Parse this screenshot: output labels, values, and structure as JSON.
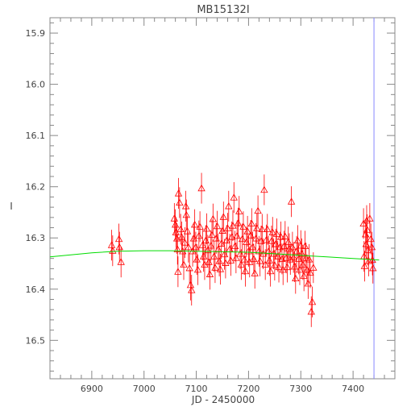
{
  "chart_data": {
    "type": "scatter",
    "title": "MB15132I",
    "xlabel": "JD - 2450000",
    "ylabel": "I",
    "xlim": [
      6820,
      7480
    ],
    "ylim": [
      16.575,
      15.87
    ],
    "y_inverted": true,
    "grid": false,
    "x_ticks": [
      6900,
      7000,
      7100,
      7200,
      7300,
      7400
    ],
    "x_tick_labels": [
      "6900",
      "7000",
      "7100",
      "7200",
      "7300",
      "7400"
    ],
    "y_ticks": [
      15.9,
      16.0,
      16.1,
      16.2,
      16.3,
      16.4,
      16.5
    ],
    "y_tick_labels": [
      "15.9",
      "16.0",
      "16.1",
      "16.2",
      "16.3",
      "16.4",
      "16.5"
    ],
    "series": [
      {
        "style": "triangle-markers-with-errorbars",
        "color": "#ff0000",
        "error_typical": 0.03,
        "points": [
          [
            6938,
            16.314
          ],
          [
            6940,
            16.325
          ],
          [
            6952,
            16.302
          ],
          [
            6953,
            16.318
          ],
          [
            6956,
            16.347
          ],
          [
            7058,
            16.262
          ],
          [
            7060,
            16.274
          ],
          [
            7061,
            16.289
          ],
          [
            7063,
            16.301
          ],
          [
            7064,
            16.322
          ],
          [
            7065,
            16.366
          ],
          [
            7066,
            16.213
          ],
          [
            7068,
            16.231
          ],
          [
            7070,
            16.283
          ],
          [
            7072,
            16.298
          ],
          [
            7074,
            16.326
          ],
          [
            7076,
            16.352
          ],
          [
            7078,
            16.309
          ],
          [
            7080,
            16.238
          ],
          [
            7081,
            16.255
          ],
          [
            7083,
            16.287
          ],
          [
            7085,
            16.318
          ],
          [
            7087,
            16.359
          ],
          [
            7089,
            16.392
          ],
          [
            7091,
            16.402
          ],
          [
            7093,
            16.326
          ],
          [
            7095,
            16.301
          ],
          [
            7097,
            16.274
          ],
          [
            7099,
            16.318
          ],
          [
            7101,
            16.342
          ],
          [
            7103,
            16.362
          ],
          [
            7105,
            16.296
          ],
          [
            7107,
            16.278
          ],
          [
            7110,
            16.203
          ],
          [
            7112,
            16.314
          ],
          [
            7114,
            16.336
          ],
          [
            7116,
            16.352
          ],
          [
            7118,
            16.305
          ],
          [
            7120,
            16.282
          ],
          [
            7122,
            16.324
          ],
          [
            7124,
            16.347
          ],
          [
            7126,
            16.371
          ],
          [
            7128,
            16.315
          ],
          [
            7130,
            16.294
          ],
          [
            7132,
            16.263
          ],
          [
            7134,
            16.336
          ],
          [
            7136,
            16.358
          ],
          [
            7138,
            16.301
          ],
          [
            7140,
            16.277
          ],
          [
            7142,
            16.322
          ],
          [
            7144,
            16.345
          ],
          [
            7146,
            16.361
          ],
          [
            7148,
            16.311
          ],
          [
            7150,
            16.286
          ],
          [
            7152,
            16.259
          ],
          [
            7154,
            16.332
          ],
          [
            7156,
            16.349
          ],
          [
            7158,
            16.305
          ],
          [
            7160,
            16.281
          ],
          [
            7162,
            16.238
          ],
          [
            7164,
            16.322
          ],
          [
            7166,
            16.344
          ],
          [
            7168,
            16.298
          ],
          [
            7170,
            16.276
          ],
          [
            7172,
            16.221
          ],
          [
            7174,
            16.316
          ],
          [
            7176,
            16.339
          ],
          [
            7178,
            16.296
          ],
          [
            7180,
            16.271
          ],
          [
            7182,
            16.248
          ],
          [
            7184,
            16.331
          ],
          [
            7186,
            16.352
          ],
          [
            7188,
            16.302
          ],
          [
            7190,
            16.278
          ],
          [
            7192,
            16.342
          ],
          [
            7194,
            16.365
          ],
          [
            7196,
            16.308
          ],
          [
            7198,
            16.287
          ],
          [
            7200,
            16.326
          ],
          [
            7202,
            16.347
          ],
          [
            7204,
            16.295
          ],
          [
            7206,
            16.272
          ],
          [
            7208,
            16.318
          ],
          [
            7210,
            16.341
          ],
          [
            7212,
            16.369
          ],
          [
            7214,
            16.301
          ],
          [
            7216,
            16.281
          ],
          [
            7218,
            16.247
          ],
          [
            7220,
            16.326
          ],
          [
            7222,
            16.345
          ],
          [
            7224,
            16.306
          ],
          [
            7226,
            16.283
          ],
          [
            7228,
            16.331
          ],
          [
            7230,
            16.206
          ],
          [
            7232,
            16.352
          ],
          [
            7234,
            16.304
          ],
          [
            7236,
            16.283
          ],
          [
            7238,
            16.326
          ],
          [
            7240,
            16.344
          ],
          [
            7242,
            16.365
          ],
          [
            7244,
            16.306
          ],
          [
            7246,
            16.289
          ],
          [
            7248,
            16.331
          ],
          [
            7250,
            16.353
          ],
          [
            7252,
            16.312
          ],
          [
            7254,
            16.292
          ],
          [
            7256,
            16.336
          ],
          [
            7258,
            16.357
          ],
          [
            7260,
            16.318
          ],
          [
            7262,
            16.298
          ],
          [
            7264,
            16.341
          ],
          [
            7266,
            16.362
          ],
          [
            7268,
            16.316
          ],
          [
            7270,
            16.297
          ],
          [
            7272,
            16.339
          ],
          [
            7274,
            16.357
          ],
          [
            7276,
            16.308
          ],
          [
            7278,
            16.321
          ],
          [
            7280,
            16.342
          ],
          [
            7282,
            16.229
          ],
          [
            7284,
            16.318
          ],
          [
            7286,
            16.338
          ],
          [
            7288,
            16.356
          ],
          [
            7290,
            16.379
          ],
          [
            7292,
            16.326
          ],
          [
            7294,
            16.305
          ],
          [
            7296,
            16.341
          ],
          [
            7298,
            16.362
          ],
          [
            7300,
            16.315
          ],
          [
            7302,
            16.331
          ],
          [
            7304,
            16.352
          ],
          [
            7306,
            16.374
          ],
          [
            7308,
            16.316
          ],
          [
            7310,
            16.339
          ],
          [
            7312,
            16.362
          ],
          [
            7314,
            16.389
          ],
          [
            7316,
            16.342
          ],
          [
            7318,
            16.368
          ],
          [
            7320,
            16.444
          ],
          [
            7322,
            16.425
          ],
          [
            7324,
            16.358
          ],
          [
            7420,
            16.272
          ],
          [
            7421,
            16.336
          ],
          [
            7422,
            16.355
          ],
          [
            7424,
            16.293
          ],
          [
            7425,
            16.312
          ],
          [
            7426,
            16.266
          ],
          [
            7427,
            16.284
          ],
          [
            7428,
            16.324
          ],
          [
            7430,
            16.345
          ],
          [
            7432,
            16.262
          ],
          [
            7434,
            16.302
          ],
          [
            7436,
            16.318
          ],
          [
            7437,
            16.343
          ],
          [
            7438,
            16.359
          ]
        ]
      },
      {
        "style": "line",
        "color": "#00dd00",
        "points": [
          [
            6820,
            16.337
          ],
          [
            6860,
            16.333
          ],
          [
            6900,
            16.329
          ],
          [
            6950,
            16.326
          ],
          [
            7000,
            16.325
          ],
          [
            7050,
            16.325
          ],
          [
            7100,
            16.326
          ],
          [
            7150,
            16.327
          ],
          [
            7200,
            16.328
          ],
          [
            7250,
            16.331
          ],
          [
            7300,
            16.334
          ],
          [
            7350,
            16.337
          ],
          [
            7400,
            16.34
          ],
          [
            7450,
            16.343
          ]
        ]
      }
    ],
    "vertical_markers": [
      {
        "x": 7440,
        "color": "#8888ff"
      }
    ]
  }
}
